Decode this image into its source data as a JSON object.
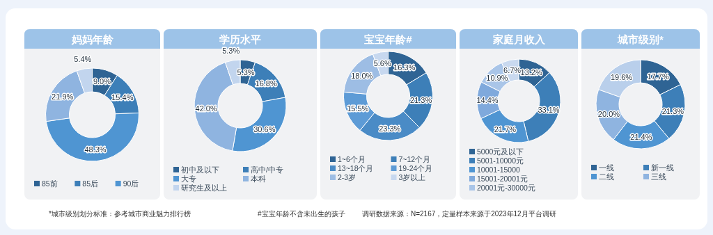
{
  "chart_data": [
    {
      "type": "donut",
      "title": "妈妈年龄",
      "categories": [
        "85前",
        "85后",
        "90后",
        null,
        null
      ],
      "values": [
        9.0,
        15.4,
        48.3,
        21.9,
        5.4
      ],
      "value_labels": [
        "9.0%",
        "15.4%",
        "48.3%",
        "21.9%",
        "5.4%"
      ],
      "colors": [
        "#2f6494",
        "#3d7fb8",
        "#4f95d2",
        "#8fb4e0",
        "#c2d5ee"
      ],
      "legend": "bottom",
      "annotations": [
        "*城市级别划分标准：参考城市商业魅力排行榜"
      ]
    },
    {
      "type": "donut",
      "title": "学历水平",
      "categories": [
        "初中及以下",
        "高中/中专",
        "大专",
        "本科",
        "研究生及以上"
      ],
      "values": [
        5.3,
        16.8,
        30.6,
        42.0,
        5.3
      ],
      "value_labels": [
        "5.3%",
        "16.8%",
        "30.6%",
        "42.0%",
        "5.3%"
      ],
      "colors": [
        "#2f6494",
        "#3d7fb8",
        "#4f95d2",
        "#8fb4e0",
        "#c2d5ee"
      ],
      "legend": "bottom",
      "annotations": [
        "#宝宝年龄不含未出生的孩子"
      ]
    },
    {
      "type": "donut",
      "title": "宝宝年龄#",
      "categories": [
        "1~6个月",
        "7~12个月",
        "13~18个月",
        "19-24个月",
        "2-3岁",
        "3岁以上"
      ],
      "values": [
        16.3,
        21.3,
        23.3,
        15.5,
        18.0,
        5.6
      ],
      "value_labels": [
        "16.3%",
        "21.3%",
        "23.3%",
        "15.5%",
        "18.0%",
        "5.6%"
      ],
      "colors": [
        "#2f6494",
        "#3d7fb8",
        "#4a8bc6",
        "#5d9bd6",
        "#9dbde4",
        "#c7d8ef"
      ],
      "legend": "bottom"
    },
    {
      "type": "donut",
      "title": "家庭月收入",
      "categories": [
        "5000元及以下",
        "5001-10000元",
        "10001-15000",
        "15001-20001元",
        "20001元-30000元",
        null
      ],
      "values": [
        13.2,
        33.1,
        21.7,
        14.4,
        10.9,
        6.7
      ],
      "value_labels": [
        "13.2%",
        "33.1%",
        "21.7%",
        "14.4%",
        "10.9%",
        "6.7%"
      ],
      "colors": [
        "#2f6494",
        "#3d7fb8",
        "#4f95d2",
        "#7fa9dc",
        "#a9c5e8",
        "#c9d9ef"
      ],
      "legend": "bottom",
      "annotations": [
        "调研数据来源：N=2167，定量样本来源于2023年12月平台调研"
      ]
    },
    {
      "type": "donut",
      "title": "城市级别*",
      "categories": [
        "一线",
        "新一线",
        "二线",
        "三线",
        null
      ],
      "values": [
        17.7,
        21.3,
        21.4,
        20.0,
        19.6
      ],
      "value_labels": [
        "17.7%",
        "21.3%",
        "21.4%",
        "20.0%",
        "19.6%"
      ],
      "colors": [
        "#2f6494",
        "#3d7fb8",
        "#4f95d2",
        "#8fb4e0",
        "#b9cfeb"
      ],
      "legend": "bottom"
    }
  ]
}
